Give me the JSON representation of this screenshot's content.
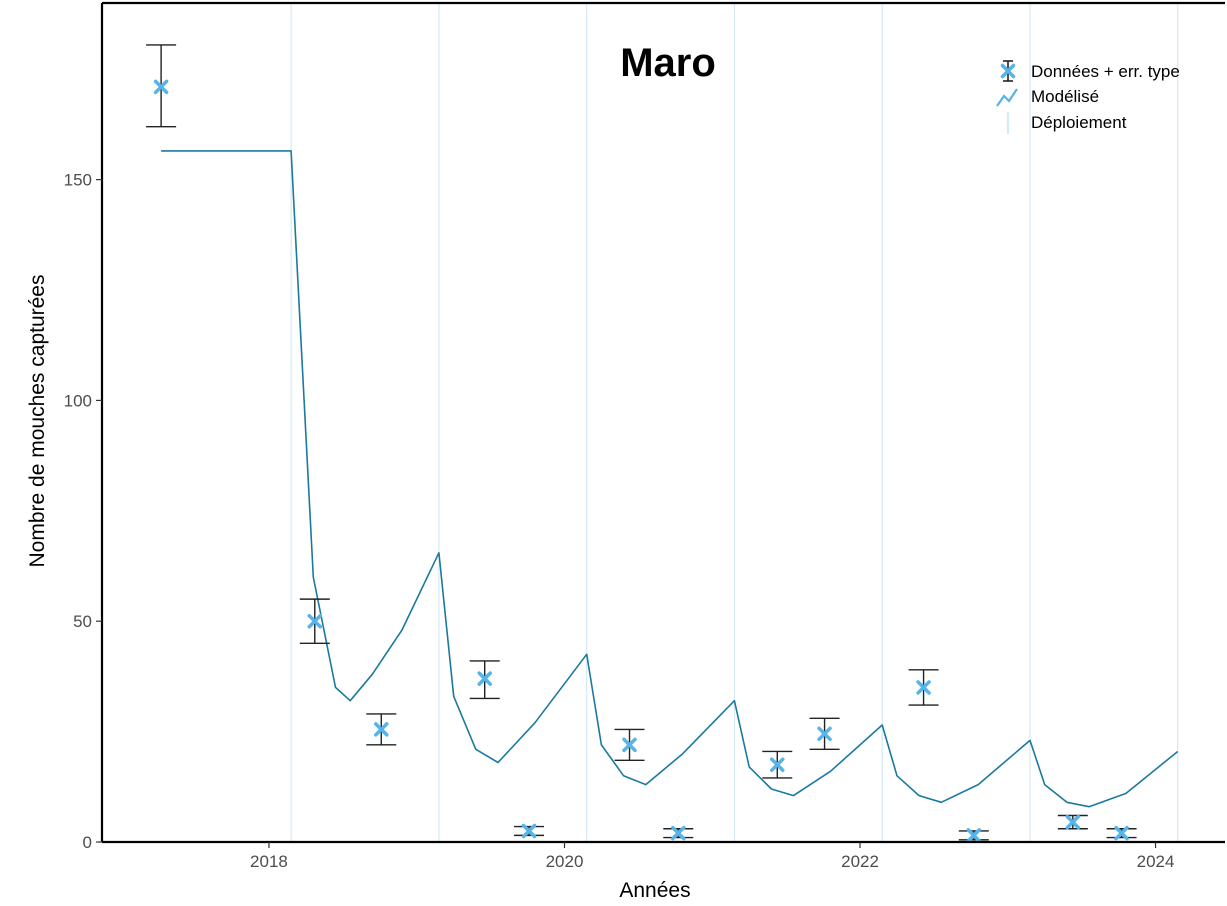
{
  "chart_data": {
    "type": "line",
    "title": "Maro",
    "xlabel": "Années",
    "ylabel": "Nombre de mouches capturées",
    "xlim": [
      2016.87,
      2024.47
    ],
    "ylim": [
      0,
      190
    ],
    "x_ticks": [
      2018,
      2020,
      2022,
      2024
    ],
    "y_ticks": [
      0,
      50,
      100,
      150
    ],
    "grid": false,
    "legend": {
      "position": "top-right",
      "entries": [
        "Données + err. type",
        "Modélisé",
        "Déploiement"
      ]
    },
    "colors": {
      "data": "#56B4E9",
      "model": "#1A7A9E",
      "deployment": "#D6EAF5",
      "errorbar": "#222222"
    },
    "deployments": [
      2018.15,
      2019.15,
      2020.15,
      2021.15,
      2022.15,
      2023.15,
      2024.15
    ],
    "series": [
      {
        "name": "Données + err. type",
        "kind": "points_with_error",
        "points": [
          {
            "x": 2017.27,
            "y": 171,
            "lo": 162,
            "hi": 180.5
          },
          {
            "x": 2018.31,
            "y": 50,
            "lo": 45,
            "hi": 55
          },
          {
            "x": 2018.76,
            "y": 25.5,
            "lo": 22,
            "hi": 29
          },
          {
            "x": 2019.46,
            "y": 37,
            "lo": 32.5,
            "hi": 41
          },
          {
            "x": 2019.76,
            "y": 2.5,
            "lo": 1.5,
            "hi": 3.5
          },
          {
            "x": 2020.44,
            "y": 22,
            "lo": 18.5,
            "hi": 25.5
          },
          {
            "x": 2020.77,
            "y": 2,
            "lo": 1,
            "hi": 3
          },
          {
            "x": 2021.44,
            "y": 17.5,
            "lo": 14.5,
            "hi": 20.5
          },
          {
            "x": 2021.76,
            "y": 24.5,
            "lo": 21,
            "hi": 28
          },
          {
            "x": 2022.43,
            "y": 35,
            "lo": 31,
            "hi": 39
          },
          {
            "x": 2022.77,
            "y": 1.5,
            "lo": 0.5,
            "hi": 2.5
          },
          {
            "x": 2023.44,
            "y": 4.5,
            "lo": 3,
            "hi": 6
          },
          {
            "x": 2023.77,
            "y": 2,
            "lo": 1,
            "hi": 3
          }
        ]
      },
      {
        "name": "Modélisé",
        "kind": "line",
        "x": [
          2017.27,
          2018.15,
          2018.3,
          2018.45,
          2018.55,
          2018.7,
          2018.9,
          2019.15,
          2019.25,
          2019.4,
          2019.55,
          2019.8,
          2020.15,
          2020.25,
          2020.4,
          2020.55,
          2020.8,
          2021.15,
          2021.25,
          2021.4,
          2021.55,
          2021.8,
          2022.15,
          2022.25,
          2022.4,
          2022.55,
          2022.8,
          2023.15,
          2023.25,
          2023.4,
          2023.55,
          2023.8,
          2024.15
        ],
        "y": [
          156.5,
          156.5,
          60,
          35,
          32,
          38,
          48,
          65.5,
          33,
          21,
          18,
          27,
          42.5,
          22,
          15,
          13,
          20,
          32,
          17,
          12,
          10.5,
          16,
          26.5,
          15,
          10.5,
          9,
          13,
          23,
          13,
          9,
          8,
          11,
          20.5
        ]
      }
    ]
  }
}
